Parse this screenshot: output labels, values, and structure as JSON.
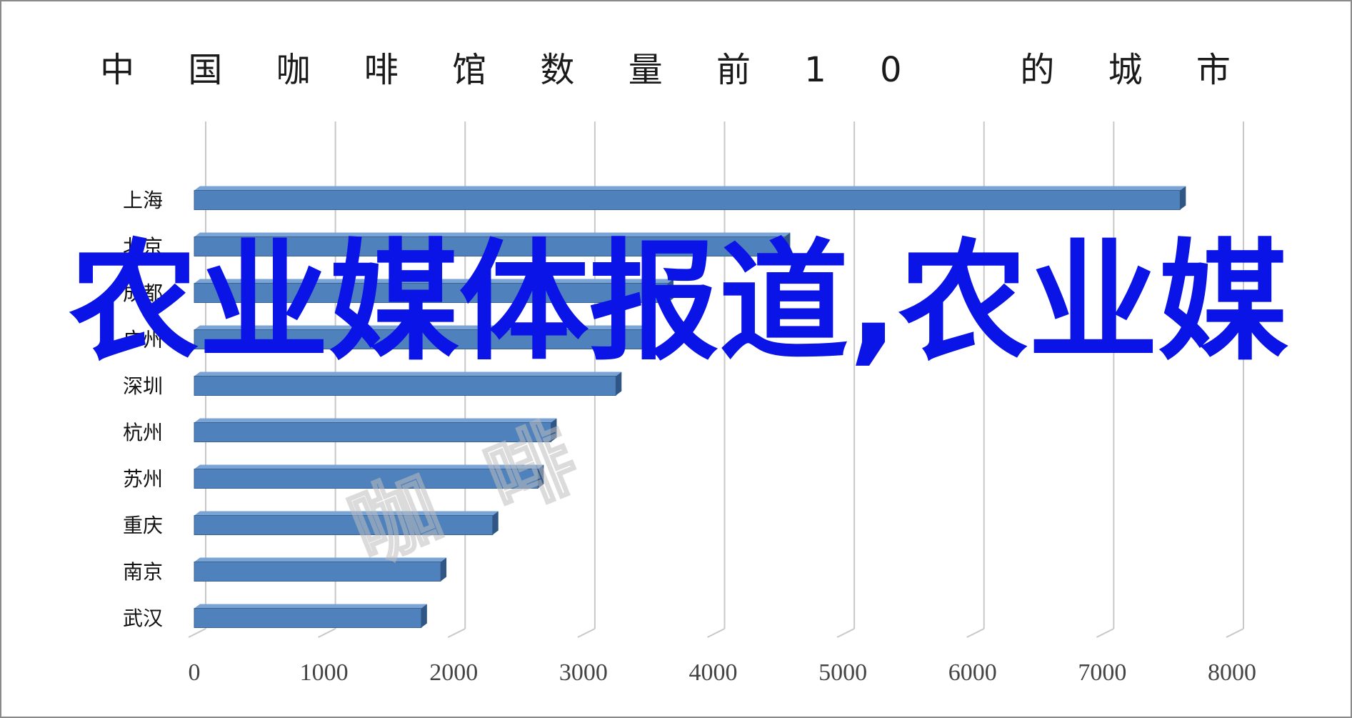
{
  "chart_data": {
    "type": "bar",
    "orientation": "horizontal",
    "title": "中 国 咖 啡 馆 数 量 前 1 0   的 城 市",
    "categories": [
      "上海",
      "北京",
      "成都",
      "广州",
      "深圳",
      "杭州",
      "苏州",
      "重庆",
      "南京",
      "武汉"
    ],
    "values": [
      7600,
      4550,
      3650,
      3500,
      3250,
      2750,
      2650,
      2300,
      1900,
      1750
    ],
    "xlim": [
      0,
      8000
    ],
    "xticks": [
      "0",
      "1000",
      "2000",
      "3000",
      "4000",
      "5000",
      "6000",
      "7000",
      "8000"
    ],
    "grid": true,
    "bar_color": "#4f81bd",
    "bar_edge_color": "#3a6390"
  },
  "overlay": {
    "text": "农业媒体报道,农业媒",
    "color": "#0a14e6"
  },
  "watermark": {
    "chars": [
      "咖",
      "啡",
      "",
      ""
    ]
  }
}
